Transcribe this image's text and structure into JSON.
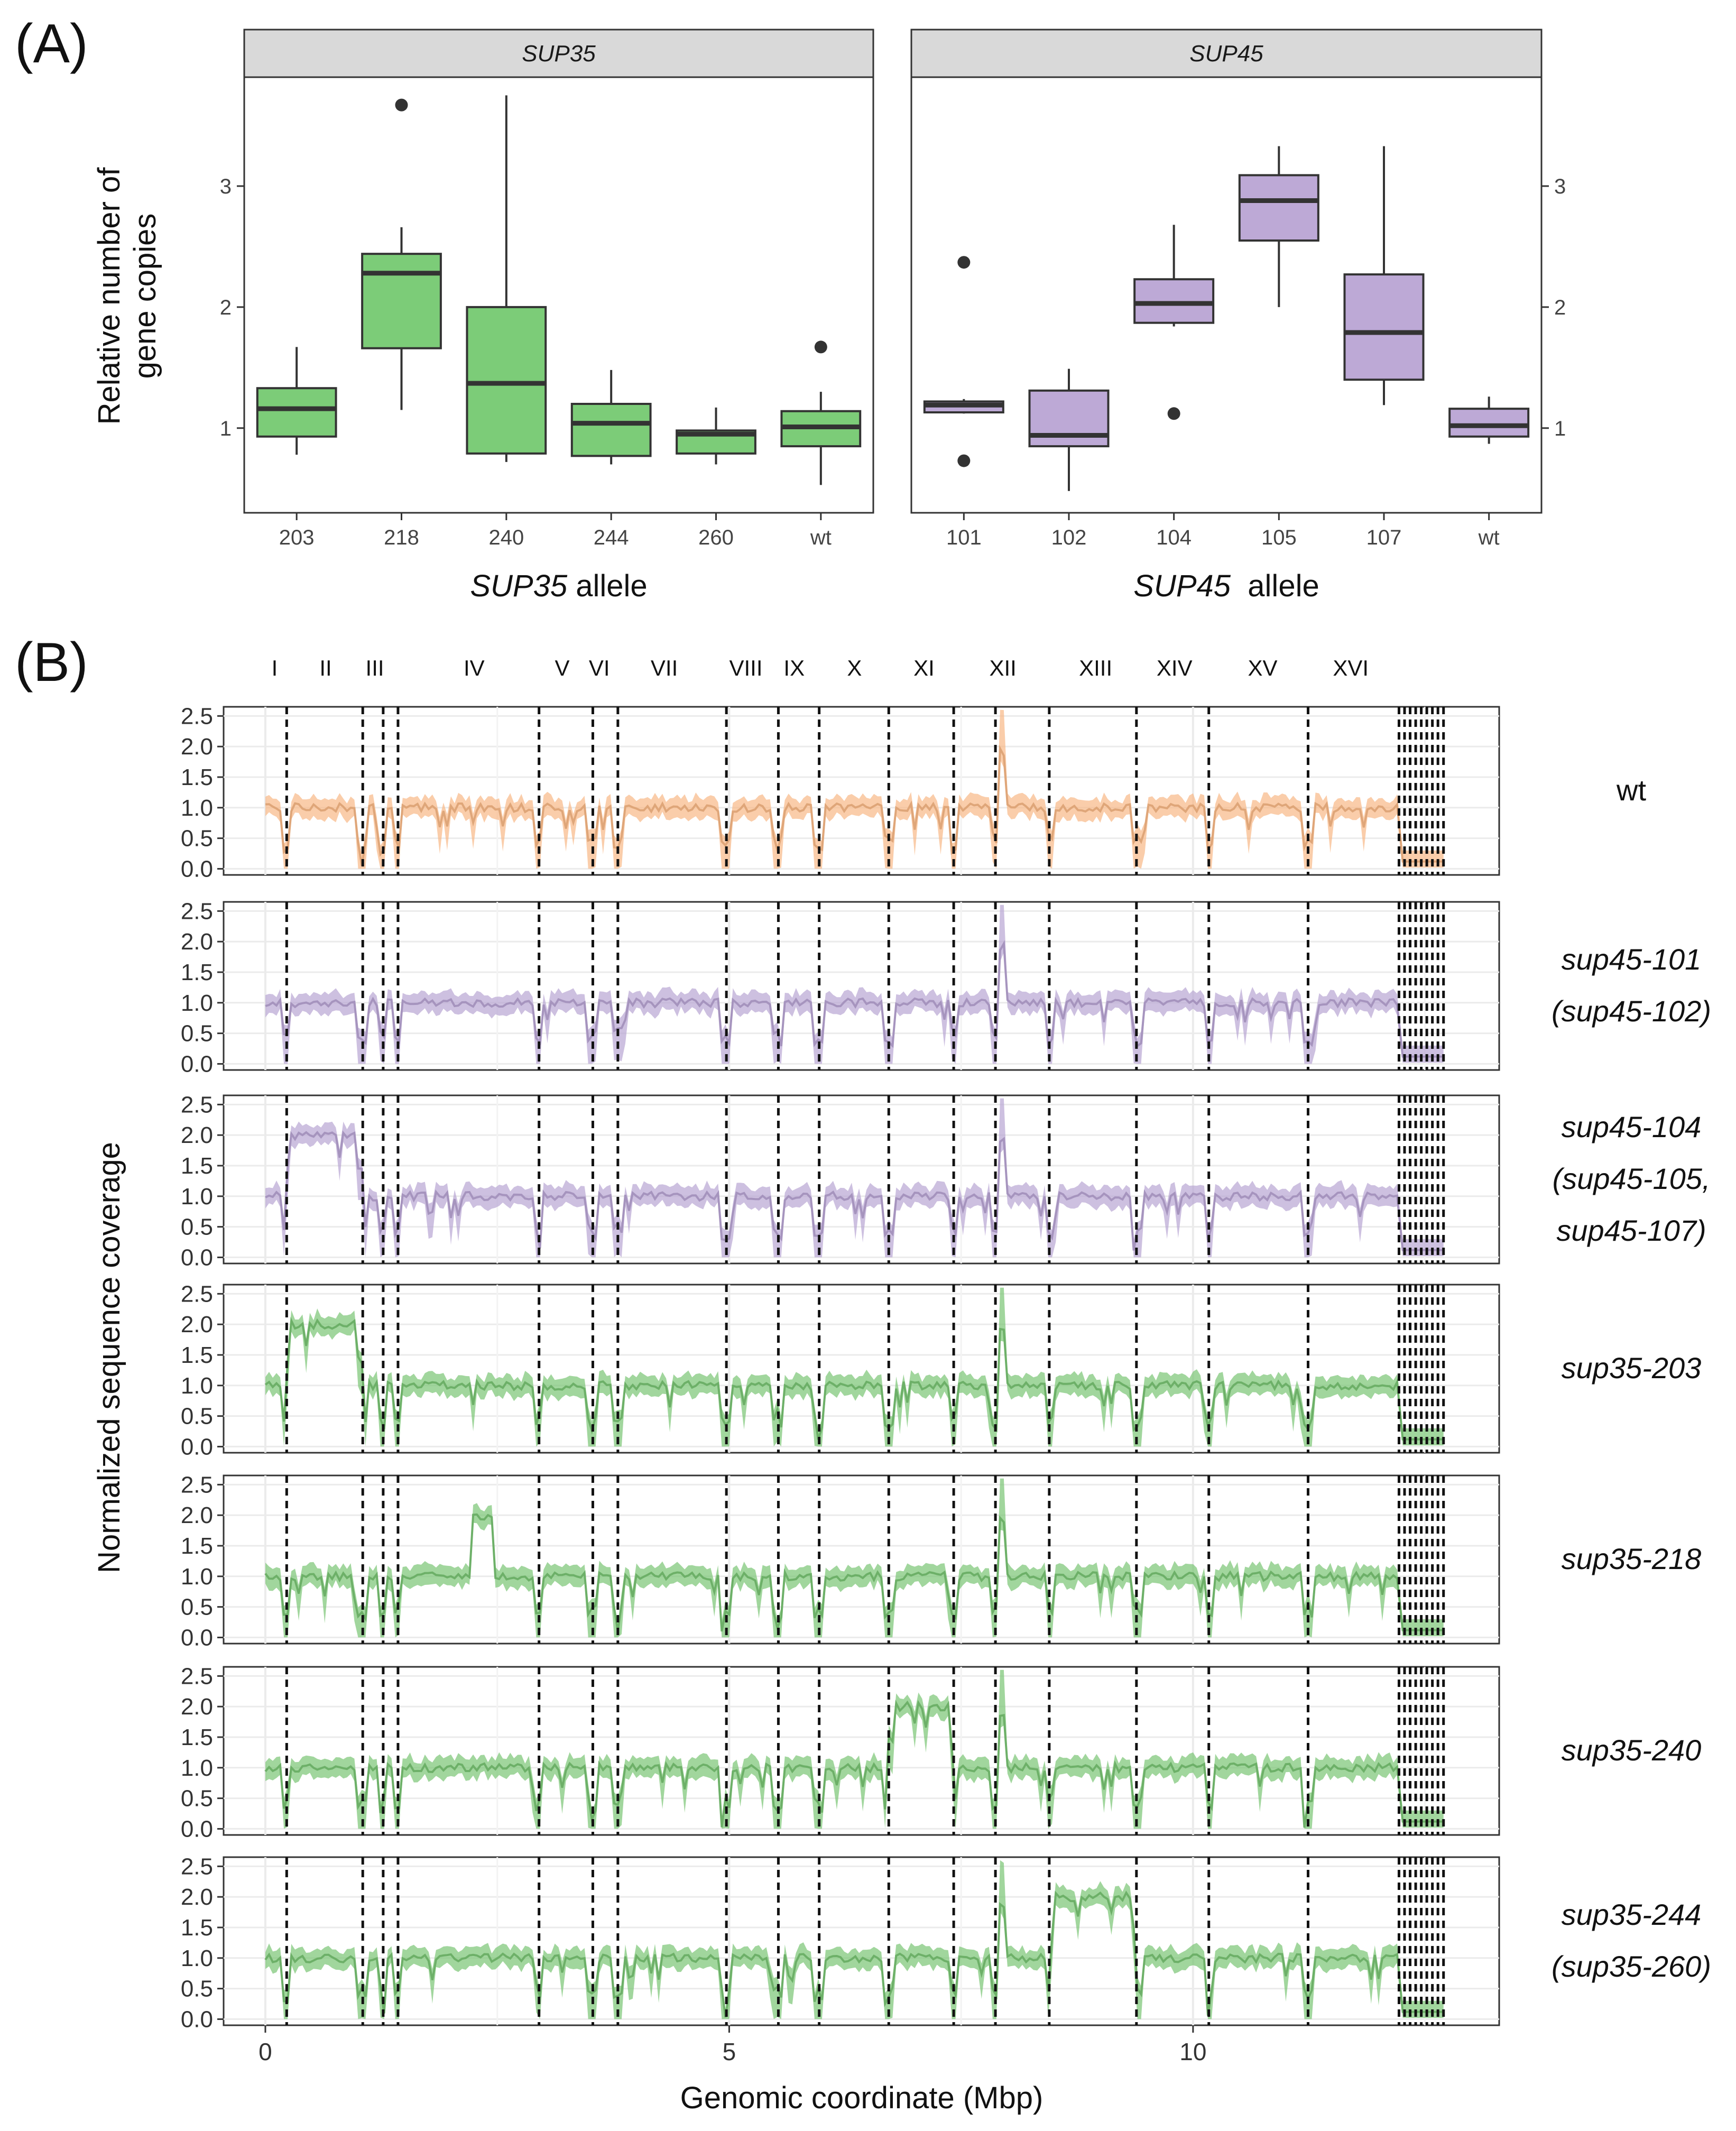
{
  "chart_data": [
    {
      "type": "box",
      "panel_label": "(A)",
      "ylabel_line1": "Relative number of",
      "ylabel_line2": "gene copies",
      "ylim": [
        0.3,
        3.9
      ],
      "yticks": [
        1,
        2,
        3
      ],
      "facets": [
        {
          "strip": "SUP35",
          "xlabel_gene": "SUP35",
          "xlabel_rest": " allele",
          "fill": "#7ccc78",
          "categories": [
            "203",
            "218",
            "240",
            "244",
            "260",
            "wt"
          ],
          "boxes": [
            {
              "category": "203",
              "whisker_low": 0.78,
              "q1": 0.93,
              "median": 1.16,
              "q3": 1.33,
              "whisker_high": 1.67,
              "outliers": []
            },
            {
              "category": "218",
              "whisker_low": 1.15,
              "q1": 1.66,
              "median": 2.28,
              "q3": 2.44,
              "whisker_high": 2.66,
              "outliers": [
                3.67
              ]
            },
            {
              "category": "240",
              "whisker_low": 0.72,
              "q1": 0.79,
              "median": 1.37,
              "q3": 2.0,
              "whisker_high": 3.75,
              "outliers": []
            },
            {
              "category": "244",
              "whisker_low": 0.7,
              "q1": 0.77,
              "median": 1.04,
              "q3": 1.2,
              "whisker_high": 1.48,
              "outliers": []
            },
            {
              "category": "260",
              "whisker_low": 0.7,
              "q1": 0.79,
              "median": 0.95,
              "q3": 0.98,
              "whisker_high": 1.17,
              "outliers": []
            },
            {
              "category": "wt",
              "whisker_low": 0.53,
              "q1": 0.85,
              "median": 1.01,
              "q3": 1.14,
              "whisker_high": 1.3,
              "outliers": [
                1.67
              ]
            }
          ]
        },
        {
          "strip": "SUP45",
          "xlabel_gene": "SUP45",
          "xlabel_rest": "  allele",
          "fill": "#bda9d6",
          "categories": [
            "101",
            "102",
            "104",
            "105",
            "107",
            "wt"
          ],
          "boxes": [
            {
              "category": "101",
              "whisker_low": 1.12,
              "q1": 1.13,
              "median": 1.19,
              "q3": 1.22,
              "whisker_high": 1.24,
              "outliers": [
                2.37,
                0.73
              ]
            },
            {
              "category": "102",
              "whisker_low": 0.48,
              "q1": 0.85,
              "median": 0.94,
              "q3": 1.31,
              "whisker_high": 1.49,
              "outliers": []
            },
            {
              "category": "104",
              "whisker_low": 1.84,
              "q1": 1.87,
              "median": 2.03,
              "q3": 2.23,
              "whisker_high": 2.68,
              "outliers": [
                1.12
              ]
            },
            {
              "category": "105",
              "whisker_low": 2.0,
              "q1": 2.55,
              "median": 2.88,
              "q3": 3.09,
              "whisker_high": 3.33,
              "outliers": []
            },
            {
              "category": "107",
              "whisker_low": 1.19,
              "q1": 1.4,
              "median": 1.79,
              "q3": 2.27,
              "whisker_high": 3.33,
              "outliers": []
            },
            {
              "category": "wt",
              "whisker_low": 0.87,
              "q1": 0.93,
              "median": 1.02,
              "q3": 1.16,
              "whisker_high": 1.26,
              "outliers": []
            }
          ]
        }
      ]
    },
    {
      "type": "line",
      "panel_label": "(B)",
      "xlabel": "Genomic coordinate (Mbp)",
      "ylabel": "Normalized sequence coverage",
      "xlim": [
        -0.45,
        13.3
      ],
      "xticks": [
        0,
        5,
        10
      ],
      "ylim": [
        -0.1,
        2.65
      ],
      "yticks": [
        "0.0",
        "0.5",
        "1.0",
        "1.5",
        "2.0",
        "2.5"
      ],
      "chromosomes": [
        "I",
        "II",
        "III",
        "IV",
        "V",
        "VI",
        "VII",
        "VIII",
        "IX",
        "X",
        "XI",
        "XII",
        "XIII",
        "XIV",
        "XV",
        "XVI"
      ],
      "chromosome_label_positions_mbp": [
        0.1,
        0.65,
        1.18,
        2.25,
        3.2,
        3.6,
        4.3,
        5.18,
        5.7,
        6.35,
        7.1,
        7.95,
        8.95,
        9.8,
        10.75,
        11.7
      ],
      "chromosome_boundaries_mbp": [
        0.23,
        1.05,
        1.27,
        1.43,
        2.95,
        3.53,
        3.8,
        4.97,
        5.53,
        5.97,
        6.72,
        7.42,
        7.87,
        8.45,
        9.39,
        10.17,
        11.24,
        12.22,
        12.28,
        12.34,
        12.4,
        12.46,
        12.52,
        12.58,
        12.64,
        12.7
      ],
      "baseline": 1.0,
      "series": [
        {
          "name": "wt",
          "label_lines": [
            "wt"
          ],
          "color": "#f8b886",
          "amplified_region_mbp": null
        },
        {
          "name": "sup45-101",
          "label_lines": [
            "sup45-101",
            "(sup45-102)"
          ],
          "color": "#b8a5d3",
          "amplified_region_mbp": null
        },
        {
          "name": "sup45-104",
          "label_lines": [
            "sup45-104",
            "(sup45-105,",
            "sup45-107)"
          ],
          "color": "#b8a5d3",
          "amplified_region_mbp": [
            0.23,
            1.05
          ]
        },
        {
          "name": "sup35-203",
          "label_lines": [
            "sup35-203"
          ],
          "color": "#79c474",
          "amplified_region_mbp": [
            0.23,
            1.05
          ]
        },
        {
          "name": "sup35-218",
          "label_lines": [
            "sup35-218"
          ],
          "color": "#79c474",
          "amplified_region_mbp": [
            2.23,
            2.45
          ]
        },
        {
          "name": "sup35-240",
          "label_lines": [
            "sup35-240"
          ],
          "color": "#79c474",
          "amplified_region_mbp": [
            6.72,
            7.42
          ]
        },
        {
          "name": "sup35-244",
          "label_lines": [
            "sup35-244",
            "(sup35-260)"
          ],
          "color": "#79c474",
          "amplified_region_mbp": [
            8.45,
            9.39
          ]
        }
      ]
    }
  ]
}
